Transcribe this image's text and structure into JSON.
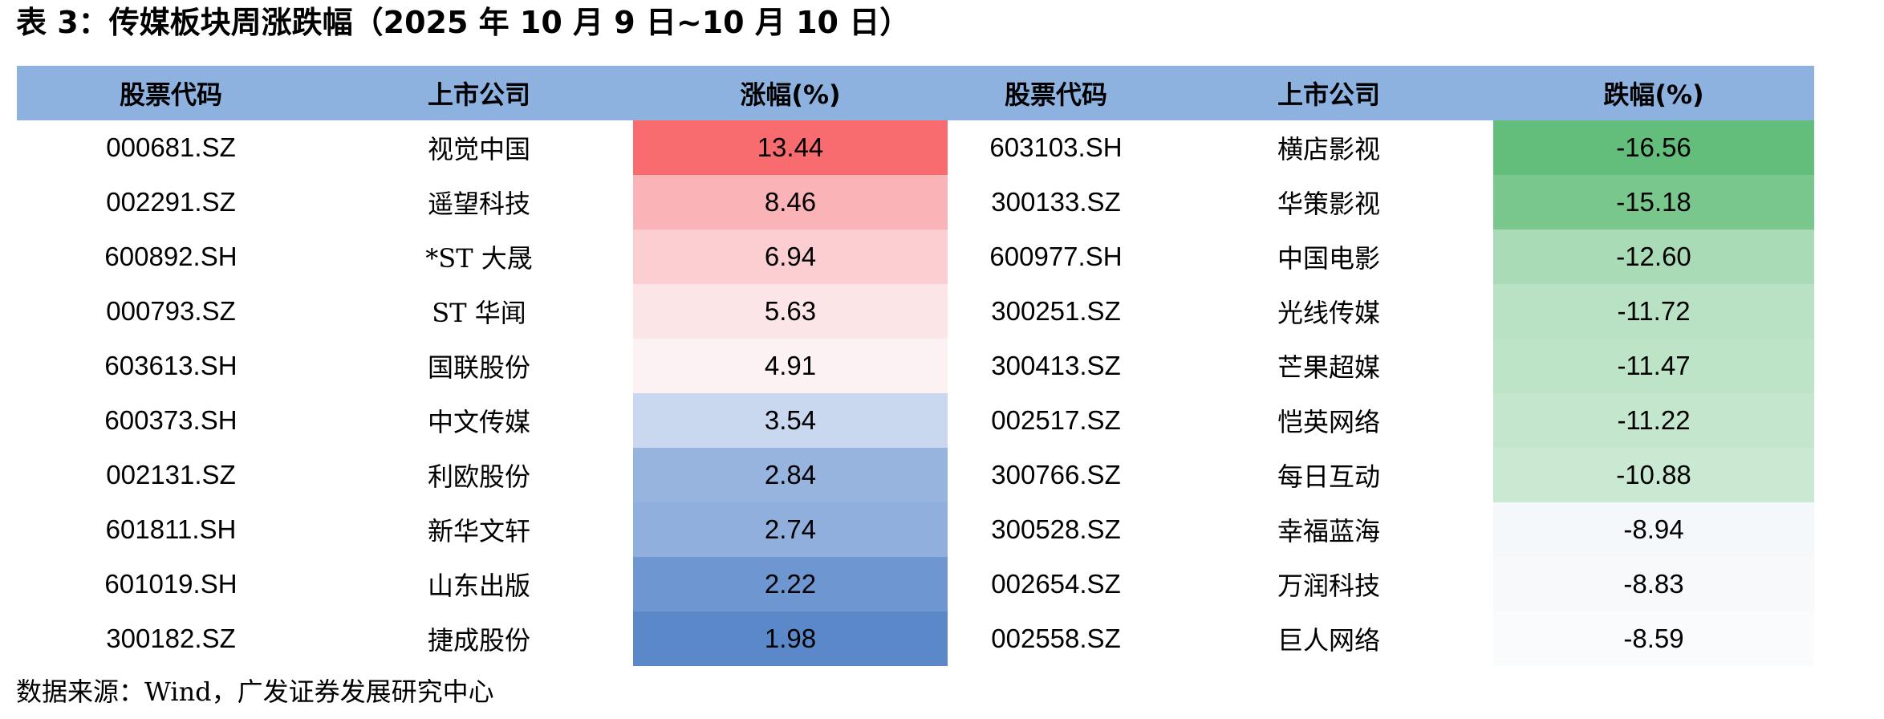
{
  "title": "表 3：传媒板块周涨跌幅（2025 年 10 月 9 日~10 月 10 日）",
  "headers": [
    "股票代码",
    "上市公司",
    "涨幅(%)",
    "股票代码",
    "上市公司",
    "跌幅(%)"
  ],
  "rows": [
    {
      "gain_code": "000681.SZ",
      "gain_name": "视觉中国",
      "gain_pct": "13.44",
      "gain_bg": "#f86c70",
      "loss_code": "603103.SH",
      "loss_name": "横店影视",
      "loss_pct": "-16.56",
      "loss_bg": "#63be7b"
    },
    {
      "gain_code": "002291.SZ",
      "gain_name": "遥望科技",
      "gain_pct": "8.46",
      "gain_bg": "#fab3b6",
      "loss_code": "300133.SZ",
      "loss_name": "华策影视",
      "loss_pct": "-15.18",
      "loss_bg": "#7ac78e"
    },
    {
      "gain_code": "600892.SH",
      "gain_name": "*ST 大晟",
      "gain_pct": "6.94",
      "gain_bg": "#fbcfd1",
      "loss_code": "600977.SH",
      "loss_name": "中国电影",
      "loss_pct": "-12.60",
      "loss_bg": "#a9dbb6"
    },
    {
      "gain_code": "000793.SZ",
      "gain_name": "ST 华闻",
      "gain_pct": "5.63",
      "gain_bg": "#fce5e7",
      "loss_code": "300251.SZ",
      "loss_name": "光线传媒",
      "loss_pct": "-11.72",
      "loss_bg": "#b9e2c4"
    },
    {
      "gain_code": "603613.SH",
      "gain_name": "国联股份",
      "gain_pct": "4.91",
      "gain_bg": "#fcf2f4",
      "loss_code": "300413.SZ",
      "loss_name": "芒果超媒",
      "loss_pct": "-11.47",
      "loss_bg": "#bee4c8"
    },
    {
      "gain_code": "600373.SH",
      "gain_name": "中文传媒",
      "gain_pct": "3.54",
      "gain_bg": "#c9d8ef",
      "loss_code": "002517.SZ",
      "loss_name": "恺英网络",
      "loss_pct": "-11.22",
      "loss_bg": "#c3e6cc"
    },
    {
      "gain_code": "002131.SZ",
      "gain_name": "利欧股份",
      "gain_pct": "2.84",
      "gain_bg": "#97b4df",
      "loss_code": "300766.SZ",
      "loss_name": "每日互动",
      "loss_pct": "-10.88",
      "loss_bg": "#c9e9d2"
    },
    {
      "gain_code": "601811.SH",
      "gain_name": "新华文轩",
      "gain_pct": "2.74",
      "gain_bg": "#91afdc",
      "loss_code": "300528.SZ",
      "loss_name": "幸福蓝海",
      "loss_pct": "-8.94",
      "loss_bg": "#f5f8fa"
    },
    {
      "gain_code": "601019.SH",
      "gain_name": "山东出版",
      "gain_pct": "2.22",
      "gain_bg": "#6e96d0",
      "loss_code": "002654.SZ",
      "loss_name": "万润科技",
      "loss_pct": "-8.83",
      "loss_bg": "#f7f9fb"
    },
    {
      "gain_code": "300182.SZ",
      "gain_name": "捷成股份",
      "gain_pct": "1.98",
      "gain_bg": "#5a88c8",
      "loss_code": "002558.SZ",
      "loss_name": "巨人网络",
      "loss_pct": "-8.59",
      "loss_bg": "#fafbfc"
    }
  ],
  "footer": "数据来源：Wind，广发证券发展研究中心"
}
